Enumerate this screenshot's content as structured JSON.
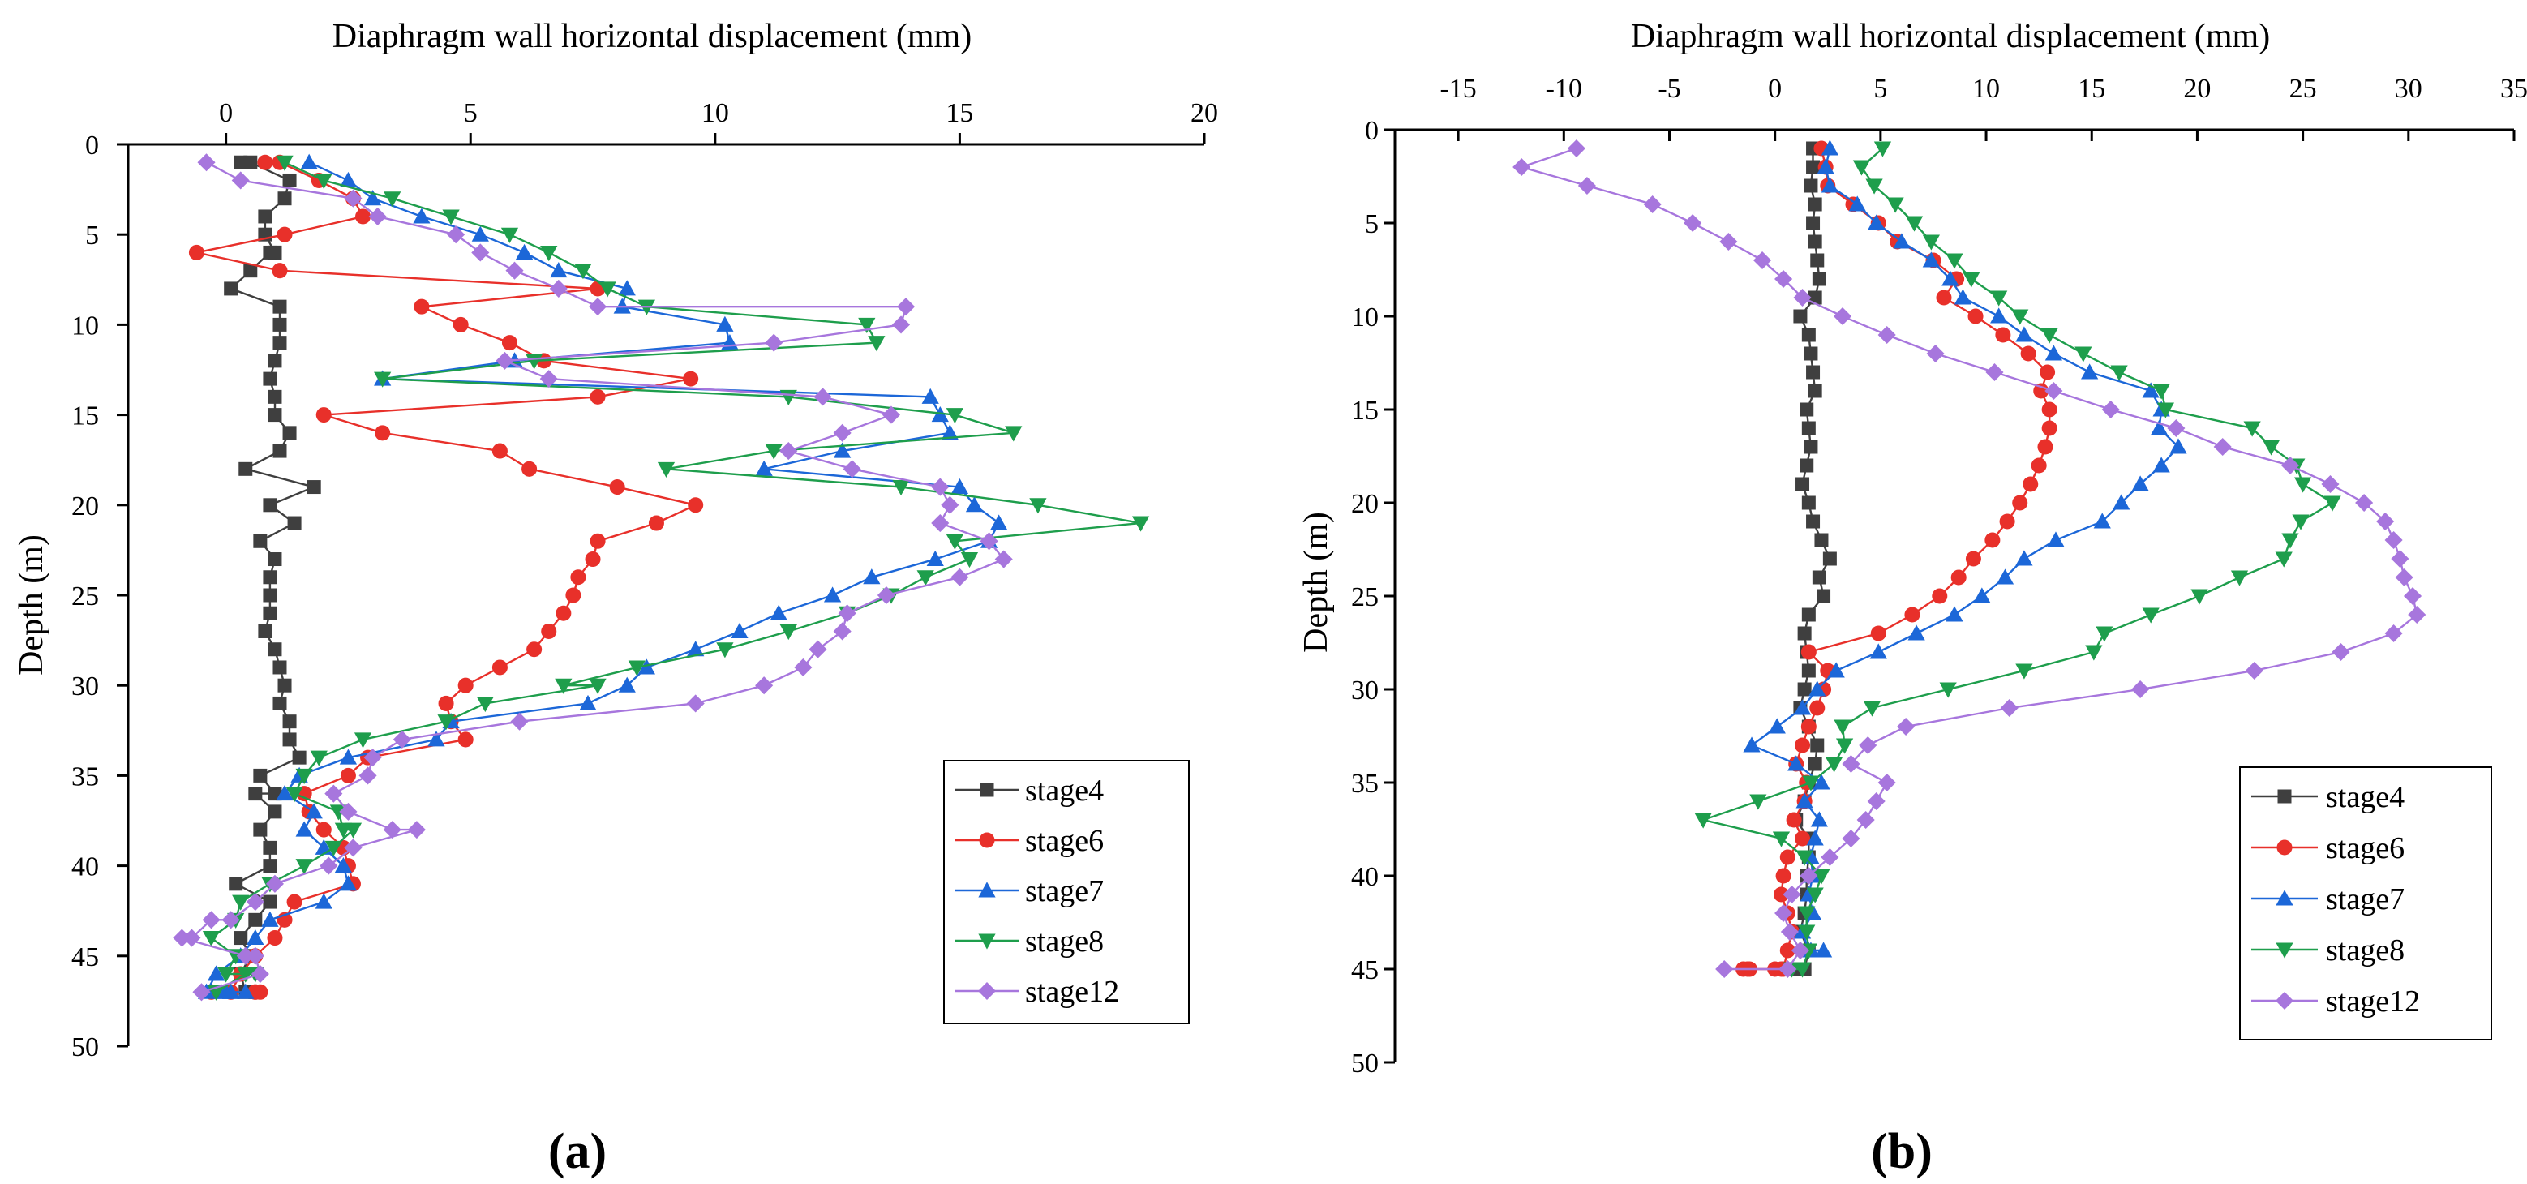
{
  "chart_data": [
    {
      "type": "line",
      "panel_label": "(a)",
      "xlabel": "Diaphragm wall horizontal displacement (mm)",
      "ylabel": "Depth (m)",
      "xlim": [
        -2,
        20
      ],
      "ylim": [
        0,
        50
      ],
      "xticks": [
        0,
        5,
        10,
        15,
        20
      ],
      "yticks": [
        0,
        5,
        10,
        15,
        20,
        25,
        30,
        35,
        40,
        45,
        50
      ],
      "legend_position": "bottom-right",
      "series": [
        {
          "name": "stage4",
          "color": "#3f3f3f",
          "marker": "square",
          "x": [
            0.3,
            0.5,
            1.3,
            1.2,
            0.8,
            0.8,
            1.0,
            1.0,
            0.9,
            0.5,
            0.1,
            1.1,
            1.1,
            1.1,
            1.0,
            0.9,
            1.0,
            1.0,
            1.3,
            1.1,
            0.4,
            1.8,
            0.9,
            1.4,
            0.7,
            1.0,
            0.9,
            0.9,
            0.9,
            0.8,
            1.0,
            1.1,
            1.2,
            1.1,
            1.3,
            1.3,
            1.5,
            0.7,
            1.0,
            0.6,
            1.0,
            0.7,
            0.9,
            0.9,
            0.2,
            0.9,
            0.6,
            0.3,
            0.5,
            0.3,
            0.4,
            0.6
          ],
          "y": [
            1,
            1,
            2,
            3,
            4,
            5,
            6,
            6,
            6,
            7,
            8,
            9,
            10,
            11,
            12,
            13,
            14,
            15,
            16,
            17,
            18,
            19,
            20,
            21,
            22,
            23,
            24,
            25,
            26,
            27,
            28,
            29,
            30,
            31,
            32,
            33,
            34,
            35,
            36,
            36,
            37,
            38,
            39,
            40,
            41,
            42,
            43,
            44,
            45,
            46,
            47,
            47
          ]
        },
        {
          "name": "stage6",
          "color": "#e8302a",
          "marker": "circle",
          "x": [
            0.8,
            1.1,
            1.9,
            2.6,
            2.8,
            1.2,
            -0.6,
            1.1,
            7.6,
            4.0,
            4.8,
            5.8,
            6.5,
            9.5,
            7.6,
            2.0,
            3.2,
            5.6,
            6.2,
            8.0,
            9.6,
            8.8,
            7.6,
            7.5,
            7.2,
            7.1,
            6.9,
            6.6,
            6.3,
            5.6,
            4.9,
            4.5,
            4.6,
            4.9,
            2.9,
            2.5,
            1.6,
            1.7,
            2.0,
            2.4,
            2.5,
            2.6,
            1.4,
            1.2,
            1.0,
            0.6,
            0.3,
            0.1,
            0.6,
            0.7,
            0.6,
            -0.3
          ],
          "y": [
            1,
            1,
            2,
            3,
            4,
            5,
            6,
            7,
            8,
            9,
            10,
            11,
            12,
            13,
            14,
            15,
            16,
            17,
            18,
            19,
            20,
            21,
            22,
            23,
            24,
            25,
            26,
            27,
            28,
            29,
            30,
            31,
            32,
            33,
            34,
            35,
            36,
            37,
            38,
            39,
            40,
            41,
            42,
            43,
            44,
            45,
            46,
            47,
            47,
            47,
            47,
            47
          ]
        },
        {
          "name": "stage7",
          "color": "#1c67d8",
          "marker": "triangle-up",
          "x": [
            1.7,
            2.5,
            3.0,
            4.0,
            5.2,
            6.1,
            6.8,
            8.2,
            8.1,
            10.2,
            10.3,
            5.9,
            3.2,
            14.4,
            14.6,
            14.8,
            12.6,
            11.0,
            15.0,
            15.3,
            15.8,
            15.6,
            14.5,
            13.2,
            12.4,
            11.3,
            10.5,
            9.6,
            8.6,
            8.2,
            7.4,
            4.6,
            4.3,
            2.5,
            1.5,
            1.2,
            1.8,
            1.6,
            2.0,
            2.4,
            2.5,
            2.0,
            0.9,
            0.6,
            0.3,
            -0.2,
            -0.4,
            0.1,
            0.1,
            0.4,
            -0.1,
            0.0
          ],
          "y": [
            1,
            2,
            3,
            4,
            5,
            6,
            7,
            8,
            9,
            10,
            11,
            12,
            13,
            14,
            15,
            16,
            17,
            18,
            19,
            20,
            21,
            22,
            23,
            24,
            25,
            26,
            27,
            28,
            29,
            30,
            31,
            32,
            33,
            34,
            35,
            36,
            37,
            38,
            39,
            40,
            41,
            42,
            43,
            44,
            45,
            46,
            47,
            47,
            47,
            47,
            47,
            47
          ]
        },
        {
          "name": "stage8",
          "color": "#1e9e4c",
          "marker": "triangle-down",
          "x": [
            1.2,
            2.0,
            3.4,
            4.6,
            5.8,
            6.6,
            7.3,
            7.8,
            8.6,
            13.1,
            13.3,
            6.3,
            3.2,
            11.5,
            14.9,
            16.1,
            11.2,
            9.0,
            13.8,
            16.6,
            18.7,
            14.9,
            15.2,
            14.3,
            13.6,
            12.7,
            11.5,
            10.2,
            8.4,
            6.9,
            7.6,
            5.3,
            4.5,
            2.8,
            1.9,
            1.6,
            1.4,
            2.3,
            2.4,
            2.6,
            2.2,
            1.6,
            0.9,
            0.3,
            0.2,
            -0.3,
            0.2,
            0.0,
            0.4,
            0.6,
            0.4,
            -0.2
          ],
          "y": [
            1,
            2,
            3,
            4,
            5,
            6,
            7,
            8,
            9,
            10,
            11,
            12,
            13,
            14,
            15,
            16,
            17,
            18,
            19,
            20,
            21,
            22,
            23,
            24,
            25,
            26,
            27,
            28,
            29,
            30,
            30,
            31,
            32,
            33,
            34,
            35,
            36,
            37,
            38,
            38,
            39,
            40,
            41,
            42,
            43,
            44,
            45,
            46,
            46,
            46,
            46,
            47
          ]
        },
        {
          "name": "stage12",
          "color": "#a776dd",
          "marker": "diamond",
          "x": [
            -0.4,
            0.3,
            2.6,
            3.1,
            4.7,
            5.2,
            5.9,
            6.8,
            7.6,
            13.9,
            13.8,
            11.2,
            5.7,
            6.6,
            12.2,
            13.6,
            12.6,
            11.5,
            12.8,
            14.6,
            14.8,
            14.6,
            15.6,
            15.9,
            15.0,
            13.5,
            12.7,
            12.6,
            12.1,
            11.8,
            11.0,
            9.6,
            6.0,
            3.6,
            3.0,
            2.9,
            2.2,
            2.5,
            3.4,
            3.9,
            2.6,
            2.1,
            1.0,
            0.6,
            0.1,
            -0.3,
            -0.7,
            -0.9,
            0.4,
            0.6,
            0.7,
            -0.5
          ],
          "y": [
            1,
            2,
            3,
            4,
            5,
            6,
            7,
            8,
            9,
            9,
            10,
            11,
            12,
            13,
            14,
            15,
            16,
            17,
            18,
            19,
            20,
            21,
            22,
            23,
            24,
            25,
            26,
            27,
            28,
            29,
            30,
            31,
            32,
            33,
            34,
            35,
            36,
            37,
            38,
            38,
            39,
            40,
            41,
            42,
            43,
            43,
            44,
            44,
            45,
            45,
            46,
            47
          ]
        }
      ]
    },
    {
      "type": "line",
      "panel_label": "(b)",
      "xlabel": "Diaphragm wall horizontal displacement (mm)",
      "ylabel": "Depth (m)",
      "xlim": [
        -18,
        35
      ],
      "ylim": [
        0,
        50
      ],
      "xticks": [
        -15,
        -10,
        -5,
        0,
        5,
        10,
        15,
        20,
        25,
        30,
        35
      ],
      "yticks": [
        0,
        5,
        10,
        15,
        20,
        25,
        30,
        35,
        40,
        45,
        50
      ],
      "legend_position": "bottom-right",
      "series": [
        {
          "name": "stage4",
          "color": "#3f3f3f",
          "marker": "square",
          "x": [
            1.8,
            1.8,
            1.7,
            1.9,
            1.8,
            1.9,
            2.0,
            2.1,
            1.9,
            1.2,
            1.6,
            1.7,
            1.8,
            1.9,
            1.5,
            1.6,
            1.7,
            1.5,
            1.3,
            1.6,
            1.8,
            2.2,
            2.6,
            2.1,
            2.3,
            1.6,
            1.4,
            1.5,
            1.6,
            1.4,
            1.2,
            1.6,
            2.0,
            1.9,
            1.6,
            1.4,
            1.0,
            1.6,
            1.6,
            1.5,
            1.5,
            1.4,
            1.2,
            1.6,
            1.4,
            1.2,
            1.3,
            0.9,
            1.2,
            1.1,
            0.7
          ],
          "y": [
            1,
            2,
            3,
            4,
            5,
            6,
            7,
            8,
            9,
            10,
            11,
            12,
            13,
            14,
            15,
            16,
            17,
            18,
            19,
            20,
            21,
            22,
            23,
            24,
            25,
            26,
            27,
            28,
            29,
            30,
            31,
            32,
            33,
            34,
            35,
            36,
            37,
            38,
            39,
            40,
            41,
            42,
            43,
            44,
            45,
            45,
            45,
            45,
            45,
            45,
            45
          ]
        },
        {
          "name": "stage6",
          "color": "#e8302a",
          "marker": "circle",
          "x": [
            2.2,
            2.4,
            2.5,
            3.7,
            4.9,
            5.8,
            7.5,
            8.6,
            8.0,
            9.5,
            10.8,
            12.0,
            12.9,
            12.6,
            13.0,
            13.0,
            12.8,
            12.5,
            12.1,
            11.6,
            11.0,
            10.3,
            9.4,
            8.7,
            7.8,
            6.5,
            4.9,
            1.6,
            2.5,
            2.3,
            2.0,
            1.6,
            1.3,
            1.0,
            1.5,
            1.4,
            0.9,
            1.3,
            0.6,
            0.4,
            0.3,
            0.6,
            0.8,
            0.6,
            0.4,
            0.3,
            0.0,
            -1.2,
            -1.5,
            -1.3
          ],
          "y": [
            1,
            2,
            3,
            4,
            5,
            6,
            7,
            8,
            9,
            10,
            11,
            12,
            13,
            14,
            15,
            16,
            17,
            18,
            19,
            20,
            21,
            22,
            23,
            24,
            25,
            26,
            27,
            28,
            29,
            30,
            31,
            32,
            33,
            34,
            35,
            36,
            37,
            38,
            39,
            40,
            41,
            42,
            43,
            44,
            45,
            45,
            45,
            45,
            45,
            45
          ]
        },
        {
          "name": "stage7",
          "color": "#1c67d8",
          "marker": "triangle-up",
          "x": [
            2.6,
            2.4,
            2.6,
            3.9,
            4.8,
            6.0,
            7.4,
            8.3,
            8.9,
            10.6,
            11.8,
            13.2,
            14.9,
            17.8,
            18.3,
            18.2,
            19.1,
            18.3,
            17.3,
            16.4,
            15.5,
            13.3,
            11.8,
            10.9,
            9.8,
            8.5,
            6.7,
            4.9,
            2.9,
            2.0,
            1.3,
            0.1,
            -1.1,
            1.0,
            2.2,
            1.4,
            2.1,
            1.9,
            1.7,
            1.8,
            1.6,
            1.8,
            1.3,
            1.6,
            1.7,
            2.3
          ],
          "y": [
            1,
            2,
            3,
            4,
            5,
            6,
            7,
            8,
            9,
            10,
            11,
            12,
            13,
            14,
            15,
            16,
            17,
            18,
            19,
            20,
            21,
            22,
            23,
            24,
            25,
            26,
            27,
            28,
            29,
            30,
            31,
            32,
            33,
            34,
            35,
            36,
            37,
            38,
            39,
            40,
            41,
            42,
            43,
            44,
            44,
            44
          ]
        },
        {
          "name": "stage8",
          "color": "#1e9e4c",
          "marker": "triangle-down",
          "x": [
            5.1,
            4.1,
            4.7,
            5.7,
            6.6,
            7.4,
            8.5,
            9.3,
            10.6,
            11.6,
            13.0,
            14.6,
            16.3,
            18.3,
            18.5,
            22.6,
            23.5,
            24.7,
            25.0,
            26.4,
            24.9,
            24.4,
            24.1,
            22.0,
            20.1,
            17.8,
            15.6,
            15.1,
            11.8,
            8.2,
            4.6,
            3.2,
            3.3,
            2.8,
            1.7,
            -0.8,
            -3.4,
            0.3,
            1.4,
            2.2,
            1.9,
            1.5,
            1.5,
            1.6,
            1.3,
            0.8
          ],
          "y": [
            1,
            2,
            3,
            4,
            5,
            6,
            7,
            8,
            9,
            10,
            11,
            12,
            13,
            14,
            15,
            16,
            17,
            18,
            19,
            20,
            21,
            22,
            23,
            24,
            25,
            26,
            27,
            28,
            29,
            30,
            31,
            32,
            33,
            34,
            35,
            36,
            37,
            38,
            39,
            40,
            41,
            42,
            43,
            44,
            45,
            45
          ]
        },
        {
          "name": "stage12",
          "color": "#a776dd",
          "marker": "diamond",
          "x": [
            -9.4,
            -12.0,
            -8.9,
            -5.8,
            -3.9,
            -2.2,
            -0.6,
            0.4,
            1.3,
            3.2,
            5.3,
            7.6,
            10.4,
            13.2,
            15.9,
            19.0,
            21.2,
            24.4,
            26.3,
            27.9,
            28.9,
            29.3,
            29.6,
            29.8,
            30.2,
            30.4,
            29.3,
            26.8,
            22.7,
            17.3,
            11.1,
            6.2,
            4.4,
            3.6,
            5.3,
            4.8,
            4.3,
            3.6,
            2.6,
            1.6,
            0.8,
            0.4,
            0.7,
            1.2,
            0.6,
            -2.4
          ],
          "y": [
            1,
            2,
            3,
            4,
            5,
            6,
            7,
            8,
            9,
            10,
            11,
            12,
            13,
            14,
            15,
            16,
            17,
            18,
            19,
            20,
            21,
            22,
            23,
            24,
            25,
            26,
            27,
            28,
            29,
            30,
            31,
            32,
            33,
            34,
            35,
            36,
            37,
            38,
            39,
            40,
            41,
            42,
            43,
            44,
            45,
            45
          ]
        }
      ]
    }
  ]
}
